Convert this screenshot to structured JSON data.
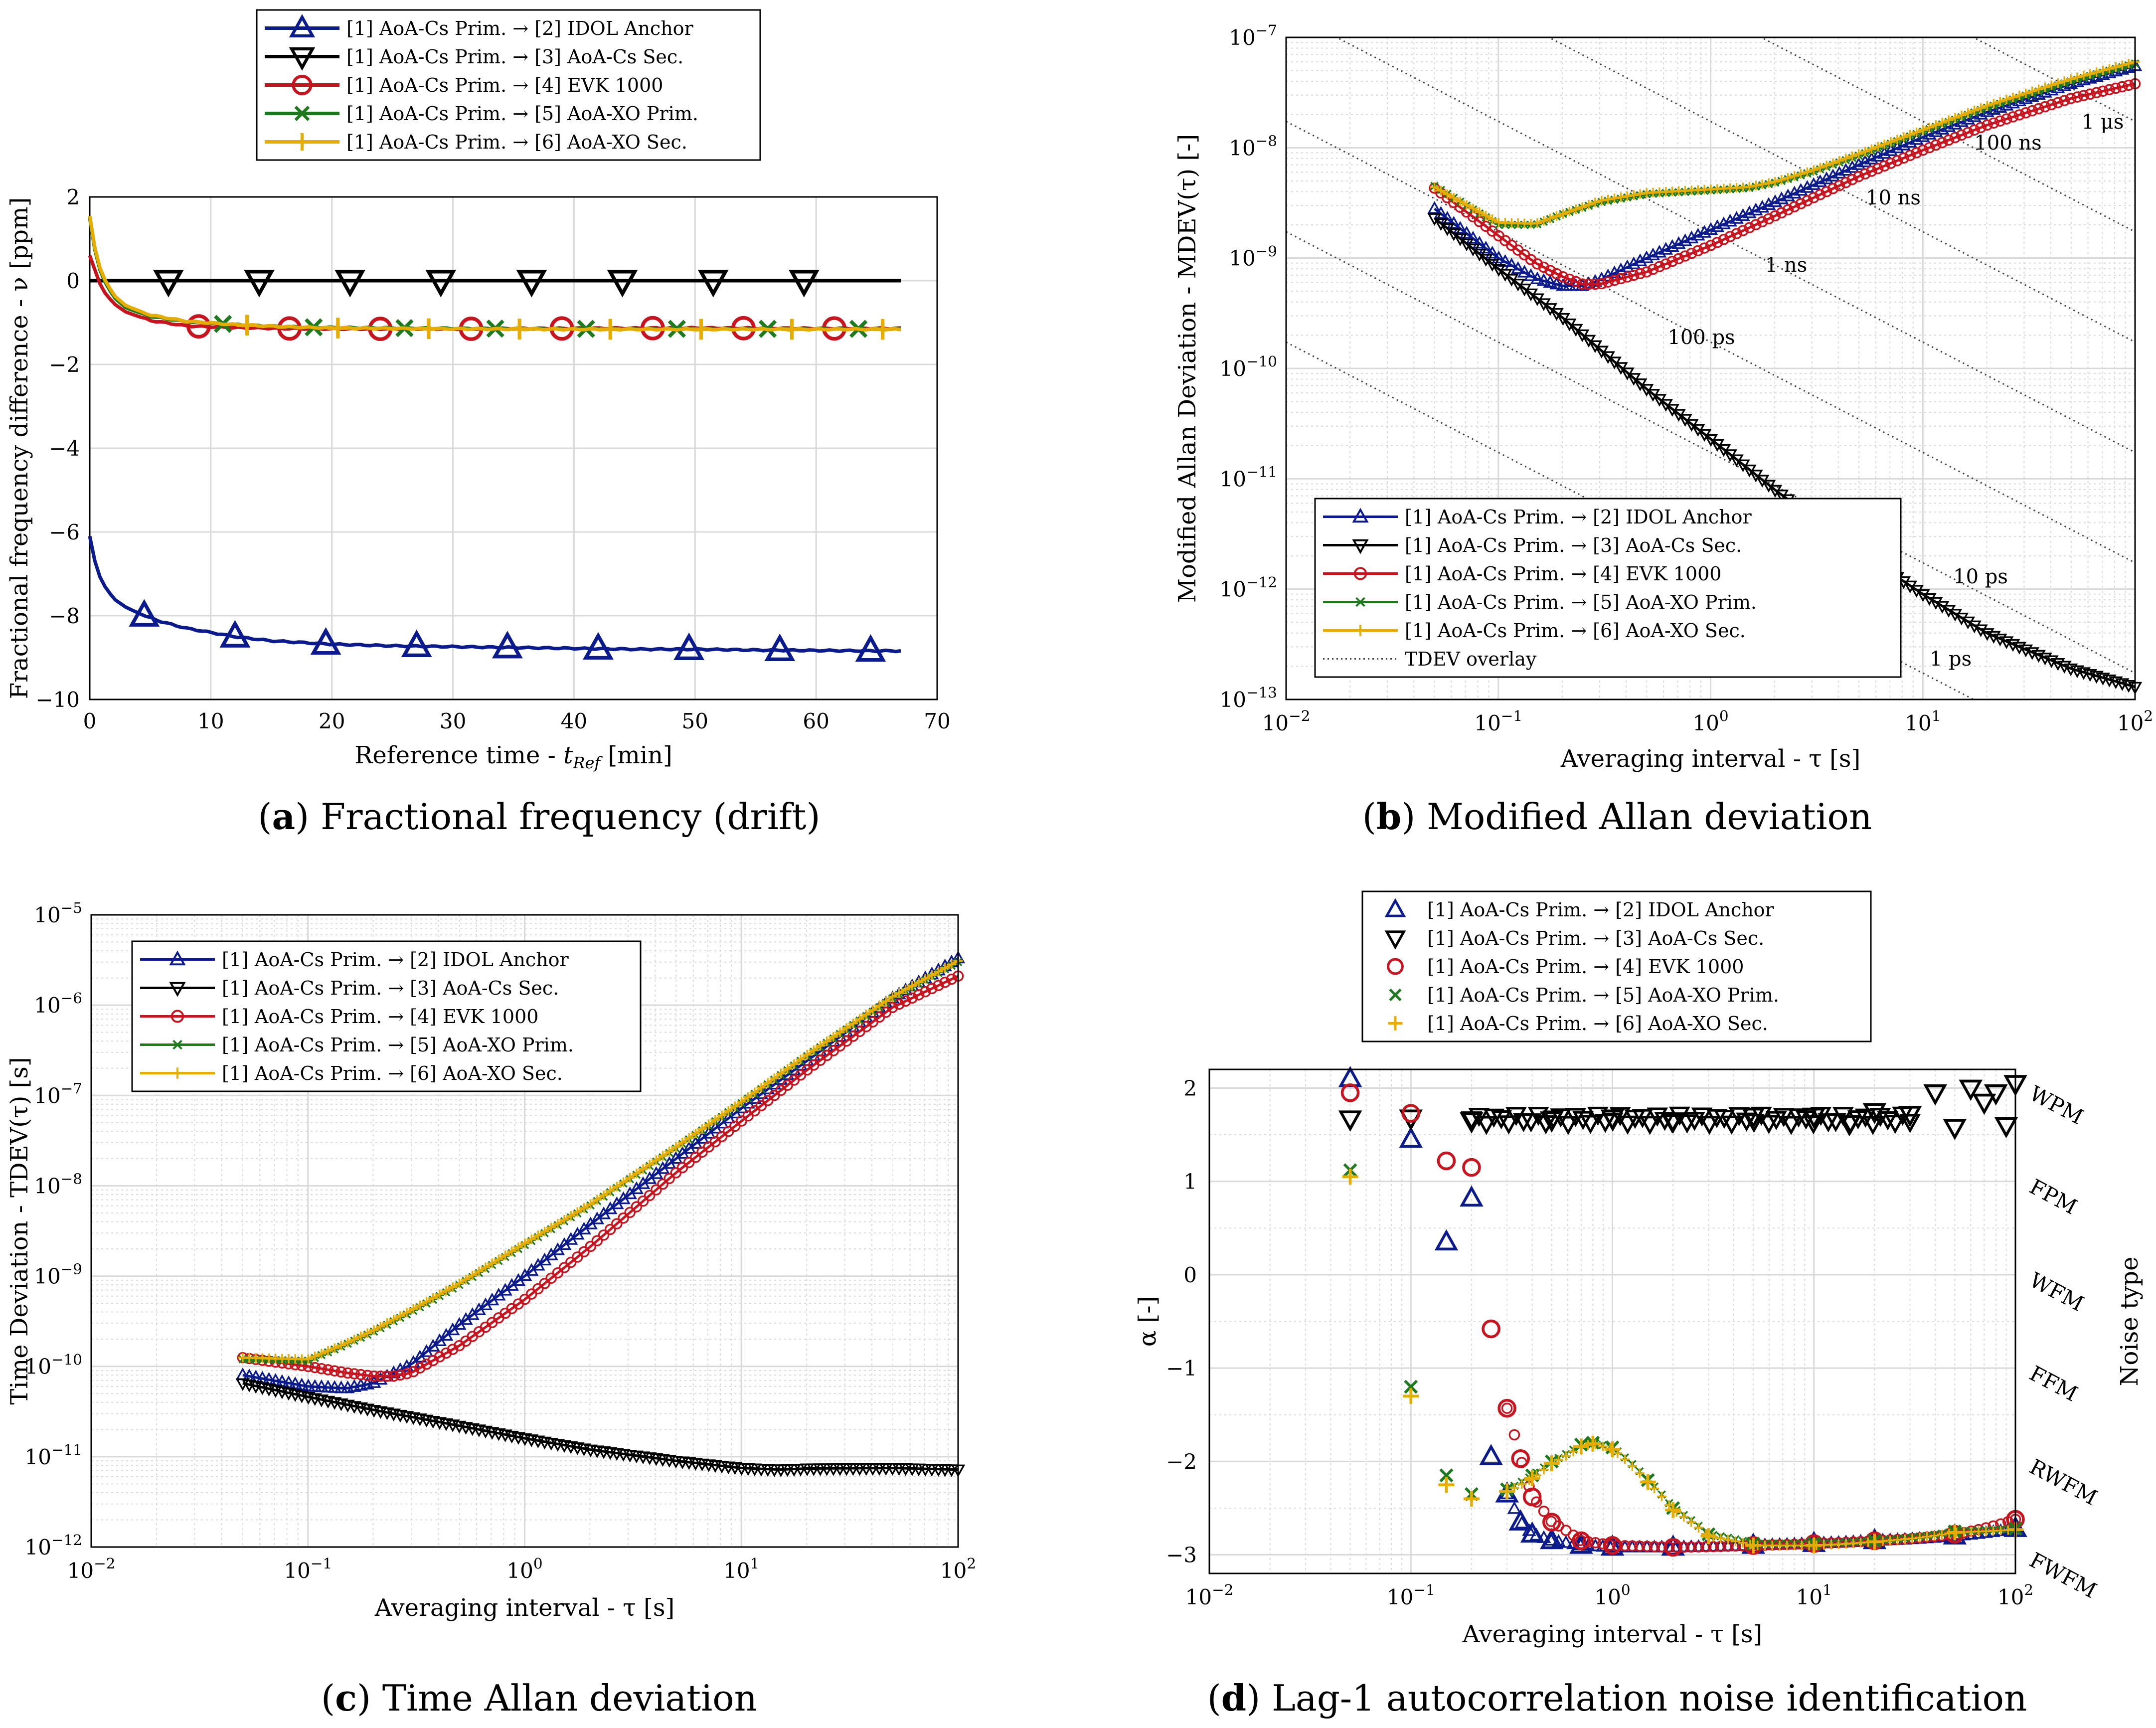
{
  "series_names": [
    "[1] AoA-Cs Prim. → [2] IDOL Anchor",
    "[1] AoA-Cs Prim. → [3] AoA-Cs Sec.",
    "[1] AoA-Cs Prim. → [4] EVK 1000",
    "[1] AoA-Cs Prim. → [5] AoA-XO Prim.",
    "[1] AoA-Cs Prim. → [6] AoA-XO Sec."
  ],
  "colors": {
    "blue": "#0b1a8c",
    "black": "#000000",
    "red": "#c8141e",
    "green": "#1e7a1e",
    "yellow": "#e6ac00",
    "grid": "#d9d9d9",
    "dotted": "#404040"
  },
  "captions": {
    "a": {
      "letter": "a",
      "text": " Fractional frequency (drift)"
    },
    "b": {
      "letter": "b",
      "text": " Modified Allan deviation"
    },
    "c": {
      "letter": "c",
      "text": " Time Allan deviation"
    },
    "d": {
      "letter": "d",
      "text": " Lag-1 autocorrelation noise identification"
    }
  },
  "chart_data": [
    {
      "id": "a",
      "type": "line",
      "xlabel": "Reference time - t_Ref [min]",
      "ylabel": "Fractional frequency difference - ν [ppm]",
      "xlim": [
        0,
        70
      ],
      "ylim": [
        -10,
        2
      ],
      "xticks": [
        0,
        10,
        20,
        30,
        40,
        50,
        60,
        70
      ],
      "yticks": [
        -10,
        -8,
        -6,
        -4,
        -2,
        0,
        2
      ],
      "legend": "top-outside",
      "series": [
        {
          "name": "[1] AoA-Cs Prim. → [2] IDOL Anchor",
          "x": [
            0,
            0.5,
            1,
            2,
            3,
            4.5,
            6,
            8,
            10,
            12,
            15,
            20,
            25,
            30,
            35,
            40,
            45,
            50,
            55,
            60,
            65,
            67
          ],
          "y": [
            -6.1,
            -6.8,
            -7.2,
            -7.6,
            -7.8,
            -8.0,
            -8.15,
            -8.3,
            -8.4,
            -8.5,
            -8.6,
            -8.68,
            -8.72,
            -8.74,
            -8.76,
            -8.78,
            -8.8,
            -8.8,
            -8.82,
            -8.83,
            -8.84,
            -8.84
          ],
          "markers_x": [
            4.5,
            12,
            19.5,
            27,
            34.5,
            42,
            49.5,
            57,
            64.5
          ]
        },
        {
          "name": "[1] AoA-Cs Prim. → [3] AoA-Cs Sec.",
          "x": [
            0,
            67
          ],
          "y": [
            0,
            0
          ],
          "markers_x": [
            6.5,
            14,
            21.5,
            29,
            36.5,
            44,
            51.5,
            59
          ]
        },
        {
          "name": "[1] AoA-Cs Prim. → [4] EVK 1000",
          "x": [
            0,
            0.5,
            1,
            2,
            3,
            5,
            8,
            12,
            16,
            20,
            30,
            40,
            50,
            60,
            67
          ],
          "y": [
            0.6,
            0.2,
            -0.2,
            -0.55,
            -0.75,
            -0.95,
            -1.08,
            -1.12,
            -1.14,
            -1.15,
            -1.15,
            -1.14,
            -1.13,
            -1.14,
            -1.14
          ],
          "markers_x": [
            9,
            16.5,
            24,
            31.5,
            39,
            46.5,
            54,
            61.5
          ]
        },
        {
          "name": "[1] AoA-Cs Prim. → [5] AoA-XO Prim.",
          "x": [
            0,
            0.5,
            1,
            2,
            3,
            5,
            8,
            12,
            16,
            20,
            30,
            40,
            50,
            60,
            67
          ],
          "y": [
            1.5,
            0.6,
            0.1,
            -0.4,
            -0.65,
            -0.85,
            -0.98,
            -1.05,
            -1.1,
            -1.12,
            -1.14,
            -1.15,
            -1.15,
            -1.15,
            -1.15
          ],
          "markers_x": [
            11,
            18.5,
            26,
            33.5,
            41,
            48.5,
            56,
            63.5
          ]
        },
        {
          "name": "[1] AoA-Cs Prim. → [6] AoA-XO Sec.",
          "x": [
            0,
            0.5,
            1,
            2,
            3,
            5,
            8,
            12,
            16,
            20,
            30,
            40,
            50,
            60,
            67
          ],
          "y": [
            1.55,
            0.65,
            0.15,
            -0.35,
            -0.6,
            -0.82,
            -0.97,
            -1.05,
            -1.1,
            -1.13,
            -1.15,
            -1.16,
            -1.16,
            -1.16,
            -1.16
          ],
          "markers_x": [
            13,
            20.5,
            28,
            35.5,
            43,
            50.5,
            58,
            65.5
          ]
        }
      ]
    },
    {
      "id": "b",
      "type": "line",
      "xscale": "log",
      "yscale": "log",
      "xlabel": "Averaging interval - τ [s]",
      "ylabel": "Modified Allan Deviation - MDEV(τ) [-]",
      "xlim": [
        0.01,
        100
      ],
      "ylim": [
        1e-13,
        1e-07
      ],
      "xtick_labels": [
        "10^-2",
        "10^-1",
        "10^0",
        "10^1",
        "10^2"
      ],
      "ytick_labels": [
        "10^-13",
        "10^-12",
        "10^-11",
        "10^-10",
        "10^-9",
        "10^-8",
        "10^-7"
      ],
      "legend": "bottom-left",
      "overlay_name": "TDEV overlay",
      "overlay_labels": [
        "1 μs",
        "100 ns",
        "10 ns",
        "1 ns",
        "100 ps",
        "10 ps",
        "1 ps"
      ],
      "overlay_values_s": [
        1e-06,
        1e-07,
        1e-08,
        1e-09,
        1e-10,
        1e-11,
        1e-12
      ],
      "series": [
        {
          "name": "[1] AoA-Cs Prim. → [2] IDOL Anchor",
          "x": [
            0.05,
            0.1,
            0.15,
            0.2,
            0.25,
            0.3,
            0.5,
            1,
            2,
            5,
            10,
            20,
            50,
            100
          ],
          "y": [
            2.8e-09,
            1e-09,
            6.5e-10,
            5.6e-10,
            5.6e-10,
            6.3e-10,
            1e-09,
            1.8e-09,
            3.2e-09,
            7e-09,
            1.25e-08,
            2.1e-08,
            3.8e-08,
            5.5e-08
          ]
        },
        {
          "name": "[1] AoA-Cs Prim. → [3] AoA-Cs Sec.",
          "x": [
            0.05,
            0.1,
            0.2,
            0.5,
            1,
            2,
            5,
            10,
            20,
            50,
            100
          ],
          "y": [
            2.3e-09,
            8e-10,
            2.9e-10,
            6.5e-11,
            2.3e-11,
            8e-12,
            2.2e-12,
            9e-13,
            4e-13,
            1.9e-13,
            1.3e-13
          ]
        },
        {
          "name": "[1] AoA-Cs Prim. → [4] EVK 1000",
          "x": [
            0.05,
            0.1,
            0.15,
            0.2,
            0.25,
            0.3,
            0.5,
            1,
            2,
            5,
            10,
            20,
            50,
            100
          ],
          "y": [
            4.3e-09,
            1.6e-09,
            9e-10,
            6.8e-10,
            5.8e-10,
            5.8e-10,
            7.5e-10,
            1.3e-09,
            2.4e-09,
            5.5e-09,
            9.5e-09,
            1.6e-08,
            2.8e-08,
            3.8e-08
          ]
        },
        {
          "name": "[1] AoA-Cs Prim. → [5] AoA-XO Prim.",
          "x": [
            0.05,
            0.1,
            0.15,
            0.2,
            0.3,
            0.5,
            1,
            1.5,
            2,
            3,
            5,
            10,
            20,
            50,
            100
          ],
          "y": [
            4.5e-09,
            2e-09,
            2e-09,
            2.5e-09,
            3.2e-09,
            3.8e-09,
            4.1e-09,
            4.3e-09,
            4.8e-09,
            6e-09,
            8.5e-09,
            1.4e-08,
            2.3e-08,
            4e-08,
            5.8e-08
          ]
        },
        {
          "name": "[1] AoA-Cs Prim. → [6] AoA-XO Sec.",
          "x": [
            0.05,
            0.1,
            0.15,
            0.2,
            0.3,
            0.5,
            1,
            1.5,
            2,
            3,
            5,
            10,
            20,
            50,
            100
          ],
          "y": [
            4.4e-09,
            2.1e-09,
            2.05e-09,
            2.5e-09,
            3.3e-09,
            3.9e-09,
            4.2e-09,
            4.4e-09,
            4.9e-09,
            6.2e-09,
            8.8e-09,
            1.45e-08,
            2.4e-08,
            4.2e-08,
            6e-08
          ]
        }
      ]
    },
    {
      "id": "c",
      "type": "line",
      "xscale": "log",
      "yscale": "log",
      "xlabel": "Averaging interval - τ [s]",
      "ylabel": "Time Deviation - TDEV(τ) [s]",
      "xlim": [
        0.01,
        100
      ],
      "ylim": [
        1e-12,
        1e-05
      ],
      "xtick_labels": [
        "10^-2",
        "10^-1",
        "10^0",
        "10^1",
        "10^2"
      ],
      "ytick_labels": [
        "10^-12",
        "10^-11",
        "10^-10",
        "10^-9",
        "10^-8",
        "10^-7",
        "10^-6",
        "10^-5"
      ],
      "legend": "top-left",
      "series": [
        {
          "name": "[1] AoA-Cs Prim. → [2] IDOL Anchor",
          "x": [
            0.05,
            0.1,
            0.15,
            0.2,
            0.3,
            0.5,
            1,
            2,
            5,
            10,
            20,
            50,
            100
          ],
          "y": [
            8e-11,
            6e-11,
            5.7e-11,
            6.5e-11,
            1.05e-10,
            2.9e-10,
            1e-09,
            3.7e-09,
            2e-08,
            7.2e-08,
            2.4e-07,
            1.2e-06,
            3.3e-06
          ]
        },
        {
          "name": "[1] AoA-Cs Prim. → [3] AoA-Cs Sec.",
          "x": [
            0.05,
            0.1,
            0.2,
            0.5,
            1,
            2,
            5,
            10,
            15,
            20,
            50,
            100
          ],
          "y": [
            6.5e-11,
            4.6e-11,
            3.3e-11,
            2.2e-11,
            1.6e-11,
            1.2e-11,
            9e-12,
            7.5e-12,
            7.2e-12,
            7.4e-12,
            7.5e-12,
            7.2e-12
          ]
        },
        {
          "name": "[1] AoA-Cs Prim. → [4] EVK 1000",
          "x": [
            0.05,
            0.1,
            0.15,
            0.2,
            0.25,
            0.3,
            0.5,
            1,
            2,
            5,
            10,
            20,
            50,
            100
          ],
          "y": [
            1.25e-10,
            1e-10,
            8.5e-11,
            7.8e-11,
            7.8e-11,
            8.5e-11,
            1.7e-10,
            5.5e-10,
            2.1e-09,
            1.4e-08,
            5.2e-08,
            1.9e-07,
            9.5e-07,
            2.1e-06
          ]
        },
        {
          "name": "[1] AoA-Cs Prim. → [5] AoA-XO Prim.",
          "x": [
            0.05,
            0.1,
            0.15,
            0.2,
            0.3,
            0.5,
            1,
            2,
            5,
            10,
            20,
            50,
            100
          ],
          "y": [
            1.2e-10,
            1.15e-10,
            1.75e-10,
            2.4e-10,
            4e-10,
            8e-10,
            2.2e-09,
            6e-09,
            2.6e-08,
            8.2e-08,
            2.7e-07,
            1.2e-06,
            3e-06
          ]
        },
        {
          "name": "[1] AoA-Cs Prim. → [6] AoA-XO Sec.",
          "x": [
            0.05,
            0.1,
            0.15,
            0.2,
            0.3,
            0.5,
            1,
            2,
            5,
            10,
            20,
            50,
            100
          ],
          "y": [
            1.25e-10,
            1.2e-10,
            1.8e-10,
            2.5e-10,
            4.2e-10,
            8.3e-10,
            2.3e-09,
            6.2e-09,
            2.7e-08,
            8.5e-08,
            2.8e-07,
            1.25e-06,
            3.1e-06
          ]
        }
      ]
    },
    {
      "id": "d",
      "type": "scatter",
      "xscale": "log",
      "xlabel": "Averaging interval - τ [s]",
      "ylabel": "α [-]",
      "ylabel_right": "Noise type",
      "xlim": [
        0.01,
        100
      ],
      "ylim": [
        -3.2,
        2.2
      ],
      "xtick_labels": [
        "10^-2",
        "10^-1",
        "10^0",
        "10^1",
        "10^2"
      ],
      "ytick_labels": [
        "-3",
        "-2",
        "-1",
        "0",
        "1",
        "2"
      ],
      "noise_types": [
        {
          "label": "WPM",
          "alpha": 2
        },
        {
          "label": "FPM",
          "alpha": 1
        },
        {
          "label": "WFM",
          "alpha": 0
        },
        {
          "label": "FFM",
          "alpha": -1
        },
        {
          "label": "RWFM",
          "alpha": -2
        },
        {
          "label": "FWFM",
          "alpha": -3
        }
      ],
      "legend": "top-outside",
      "series": [
        {
          "name": "[1] AoA-Cs Prim. → [2] IDOL Anchor",
          "x": [
            0.05,
            0.1,
            0.15,
            0.2,
            0.25,
            0.3,
            0.35,
            0.4,
            0.5,
            0.7,
            1,
            2,
            5,
            10,
            20,
            50,
            100
          ],
          "y": [
            2.1,
            1.45,
            0.35,
            0.82,
            -1.95,
            -2.35,
            -2.65,
            -2.78,
            -2.85,
            -2.9,
            -2.92,
            -2.92,
            -2.9,
            -2.88,
            -2.85,
            -2.8,
            -2.72
          ]
        },
        {
          "name": "[1] AoA-Cs Prim. → [3] AoA-Cs Sec.",
          "x": [
            0.05,
            0.1,
            0.2,
            0.5,
            1,
            2,
            5,
            10,
            15,
            20,
            30,
            40,
            50,
            60,
            70,
            80,
            90,
            100
          ],
          "y": [
            1.67,
            1.68,
            1.65,
            1.66,
            1.68,
            1.65,
            1.7,
            1.7,
            1.62,
            1.75,
            1.72,
            1.95,
            1.58,
            2.0,
            1.85,
            1.95,
            1.6,
            2.05
          ]
        },
        {
          "name": "[1] AoA-Cs Prim. → [4] EVK 1000",
          "x": [
            0.05,
            0.1,
            0.15,
            0.2,
            0.25,
            0.3,
            0.35,
            0.4,
            0.5,
            0.7,
            1,
            2,
            5,
            10,
            20,
            50,
            100
          ],
          "y": [
            1.95,
            1.73,
            1.22,
            1.15,
            -0.58,
            -1.43,
            -1.97,
            -2.38,
            -2.65,
            -2.85,
            -2.9,
            -2.92,
            -2.9,
            -2.88,
            -2.85,
            -2.78,
            -2.62
          ]
        },
        {
          "name": "[1] AoA-Cs Prim. → [5] AoA-XO Prim.",
          "x": [
            0.05,
            0.1,
            0.15,
            0.2,
            0.3,
            0.4,
            0.5,
            0.7,
            0.8,
            1,
            1.5,
            2,
            3,
            5,
            10,
            20,
            50,
            100
          ],
          "y": [
            1.12,
            -1.2,
            -2.15,
            -2.35,
            -2.3,
            -2.15,
            -2.0,
            -1.82,
            -1.8,
            -1.85,
            -2.2,
            -2.5,
            -2.78,
            -2.88,
            -2.88,
            -2.85,
            -2.75,
            -2.72
          ]
        },
        {
          "name": "[1] AoA-Cs Prim. → [6] AoA-XO Sec.",
          "x": [
            0.05,
            0.1,
            0.15,
            0.2,
            0.3,
            0.4,
            0.5,
            0.7,
            0.8,
            1,
            1.5,
            2,
            3,
            5,
            10,
            20,
            50,
            100
          ],
          "y": [
            1.05,
            -1.3,
            -2.25,
            -2.4,
            -2.32,
            -2.18,
            -2.02,
            -1.84,
            -1.81,
            -1.87,
            -2.22,
            -2.52,
            -2.8,
            -2.9,
            -2.9,
            -2.86,
            -2.76,
            -2.73
          ]
        }
      ]
    }
  ]
}
